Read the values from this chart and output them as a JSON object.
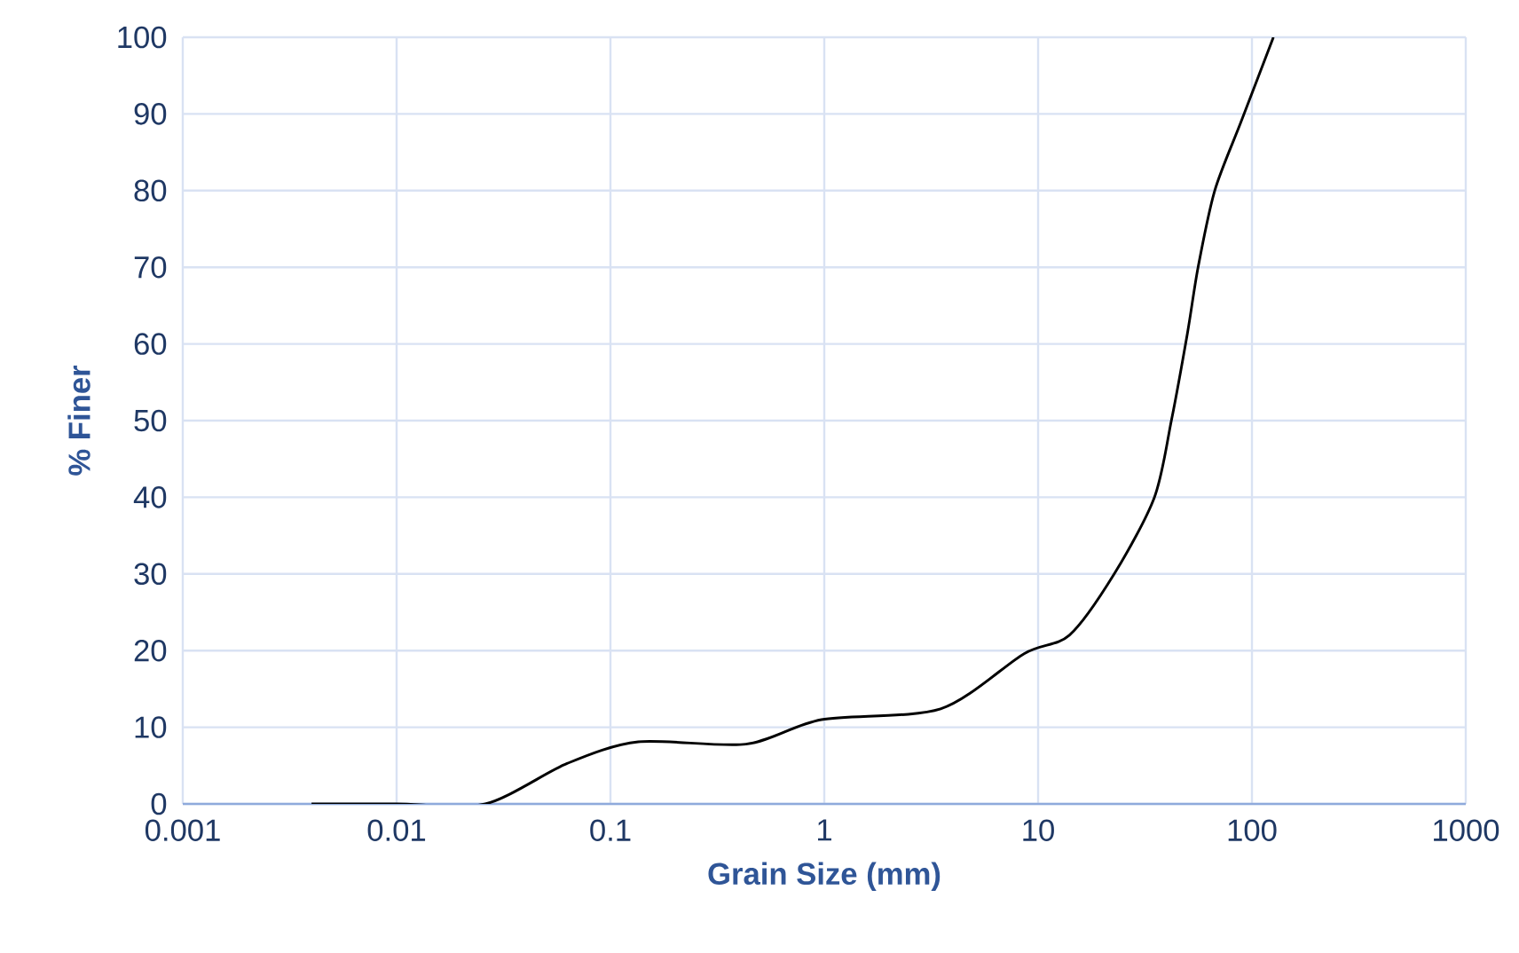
{
  "chart_data": {
    "type": "line",
    "xlabel": "Grain Size (mm)",
    "ylabel": "% Finer",
    "log": "x",
    "grid": true,
    "xlim": [
      0.001,
      1000
    ],
    "xticks": [
      0.001,
      0.01,
      0.1,
      1,
      10,
      100,
      1000
    ],
    "ylim": [
      0,
      100
    ],
    "yticks": [
      0,
      10,
      20,
      30,
      40,
      50,
      60,
      70,
      80,
      90,
      100
    ],
    "series": [
      {
        "color": "#000000",
        "x": [
          0.004,
          0.01,
          0.026,
          0.063,
          0.135,
          0.43,
          0.97,
          3.5,
          8.6,
          14,
          22.7,
          35,
          42,
          50,
          56,
          67,
          89,
          126
        ],
        "values": [
          0,
          0,
          0,
          5.3,
          8.1,
          7.8,
          11,
          12.4,
          19.6,
          22,
          30,
          40,
          50,
          61.5,
          70,
          80,
          89,
          100
        ]
      }
    ]
  }
}
